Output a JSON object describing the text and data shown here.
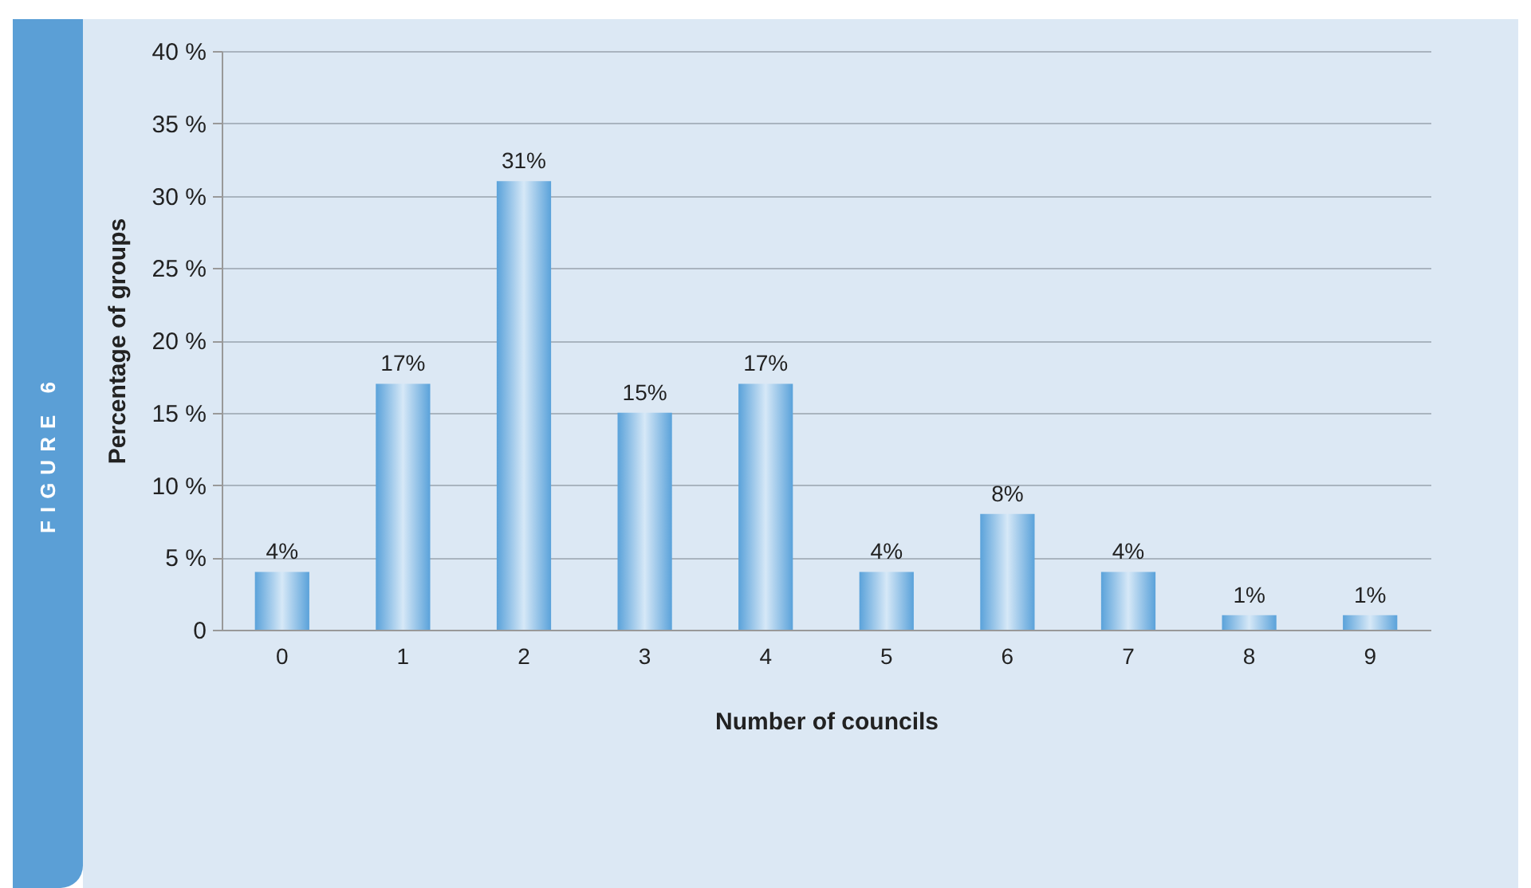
{
  "chart_data": {
    "type": "bar",
    "xlabel": "Number of councils",
    "ylabel": "Percentage of groups",
    "annotations": [
      "FIGURE 6"
    ],
    "categories": [
      "0",
      "1",
      "2",
      "3",
      "4",
      "5",
      "6",
      "7",
      "8",
      "9"
    ],
    "values": [
      4,
      17,
      31,
      15,
      17,
      4,
      8,
      4,
      1,
      1
    ],
    "value_labels": [
      "4%",
      "17%",
      "31%",
      "15%",
      "17%",
      "4%",
      "8%",
      "4%",
      "1%",
      "1%"
    ],
    "color": "#5aa2da",
    "ylim": [
      0,
      40
    ],
    "yticks": [
      {
        "value": 0,
        "label": "0"
      },
      {
        "value": 5,
        "label": "5 %"
      },
      {
        "value": 10,
        "label": "10 %"
      },
      {
        "value": 15,
        "label": "15 %"
      },
      {
        "value": 20,
        "label": "20 %"
      },
      {
        "value": 25,
        "label": "25 %"
      },
      {
        "value": 30,
        "label": "30 %"
      },
      {
        "value": 35,
        "label": "35 %"
      },
      {
        "value": 40,
        "label": "40 %"
      }
    ],
    "grid": "y"
  }
}
